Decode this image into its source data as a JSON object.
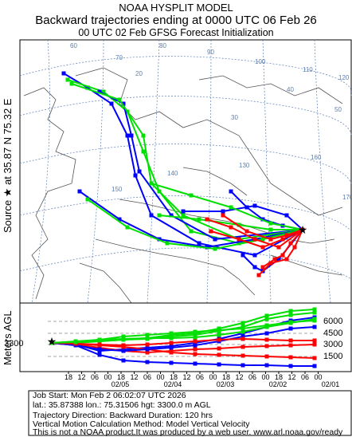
{
  "header": {
    "line1": "NOAA HYSPLIT MODEL",
    "line2": "Backward trajectories ending at 0000 UTC 06 Feb 26",
    "line3": "00 UTC 02 Feb    GFSG  Forecast Initialization"
  },
  "side_label": {
    "source": "Source ★ at    35.87 N   75.32 E",
    "meters": "Meters AGL"
  },
  "map": {
    "grid_labels": [
      "20",
      "30",
      "40",
      "50",
      "60",
      "70",
      "80",
      "90",
      "100",
      "110",
      "120",
      "130",
      "140",
      "150",
      "160",
      "170"
    ],
    "source_marker": "★",
    "colors": {
      "red": "#ff0000",
      "blue": "#0000ff",
      "green": "#00e000",
      "grid": "#5a7fb5",
      "land": "#555555"
    }
  },
  "height_panel": {
    "start_height_label": "3300",
    "right_ticks": [
      "6000",
      "4500",
      "3000",
      "1500"
    ],
    "hour_ticks": [
      "18",
      "12",
      "06",
      "00",
      "18",
      "12",
      "06",
      "00",
      "18",
      "12",
      "06",
      "00",
      "18",
      "12",
      "06",
      "00",
      "18",
      "12",
      "06",
      "00"
    ],
    "date_labels": [
      "02/05",
      "02/04",
      "02/03",
      "02/02",
      "02/01"
    ]
  },
  "info": {
    "line1": "Job Start: Mon Feb  2 06:02:07 UTC 2026",
    "line2": "lat.: 35.87388   lon.: 75.31506   hgt: 3300.0 m AGL",
    "line3": "Trajectory Direction: Backward       Duration: 120 hrs",
    "line4": "Vertical Motion Calculation Method: Model Vertical Velocity",
    "line5": "This is not a NOAA product.It was produced by a web user. www.arl.noaa.gov/ready"
  }
}
